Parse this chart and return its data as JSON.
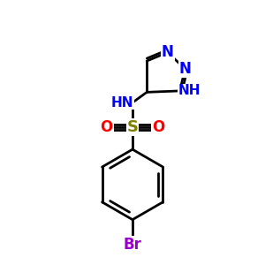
{
  "background_color": "#ffffff",
  "bond_color": "#000000",
  "bond_width": 2.0,
  "atom_colors": {
    "N": "#0000ff",
    "O": "#ff0000",
    "S": "#808000",
    "Br": "#9900cc",
    "C": "#000000",
    "H": "#0000ff"
  },
  "font_size_atom": 11,
  "figsize": [
    3.0,
    3.0
  ],
  "dpi": 100,
  "xlim": [
    0,
    10
  ],
  "ylim": [
    0,
    10
  ]
}
